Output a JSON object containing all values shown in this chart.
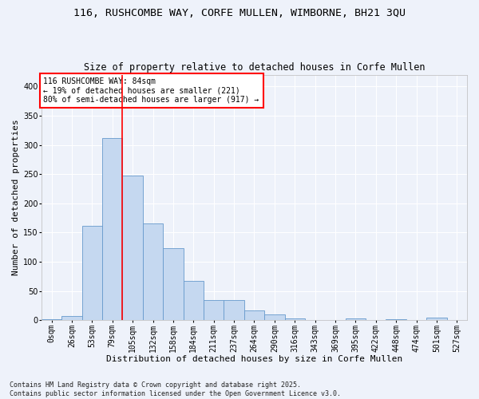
{
  "title1": "116, RUSHCOMBE WAY, CORFE MULLEN, WIMBORNE, BH21 3QU",
  "title2": "Size of property relative to detached houses in Corfe Mullen",
  "xlabel": "Distribution of detached houses by size in Corfe Mullen",
  "ylabel": "Number of detached properties",
  "categories": [
    "0sqm",
    "26sqm",
    "53sqm",
    "79sqm",
    "105sqm",
    "132sqm",
    "158sqm",
    "184sqm",
    "211sqm",
    "237sqm",
    "264sqm",
    "290sqm",
    "316sqm",
    "343sqm",
    "369sqm",
    "395sqm",
    "422sqm",
    "448sqm",
    "474sqm",
    "501sqm",
    "527sqm"
  ],
  "values": [
    2,
    8,
    161,
    311,
    248,
    165,
    123,
    67,
    34,
    34,
    17,
    10,
    3,
    1,
    0,
    3,
    0,
    2,
    0,
    4,
    0
  ],
  "bar_color": "#c5d8f0",
  "bar_edge_color": "#6699cc",
  "vline_x": 3.5,
  "vline_color": "red",
  "annotation_text": "116 RUSHCOMBE WAY: 84sqm\n← 19% of detached houses are smaller (221)\n80% of semi-detached houses are larger (917) →",
  "annotation_box_color": "white",
  "annotation_box_edge": "red",
  "footer": "Contains HM Land Registry data © Crown copyright and database right 2025.\nContains public sector information licensed under the Open Government Licence v3.0.",
  "ylim": [
    0,
    420
  ],
  "background_color": "#eef2fa",
  "grid_color": "#ffffff",
  "title_fontsize": 9.5,
  "subtitle_fontsize": 8.5,
  "axis_fontsize": 8,
  "tick_fontsize": 7,
  "footer_fontsize": 6
}
